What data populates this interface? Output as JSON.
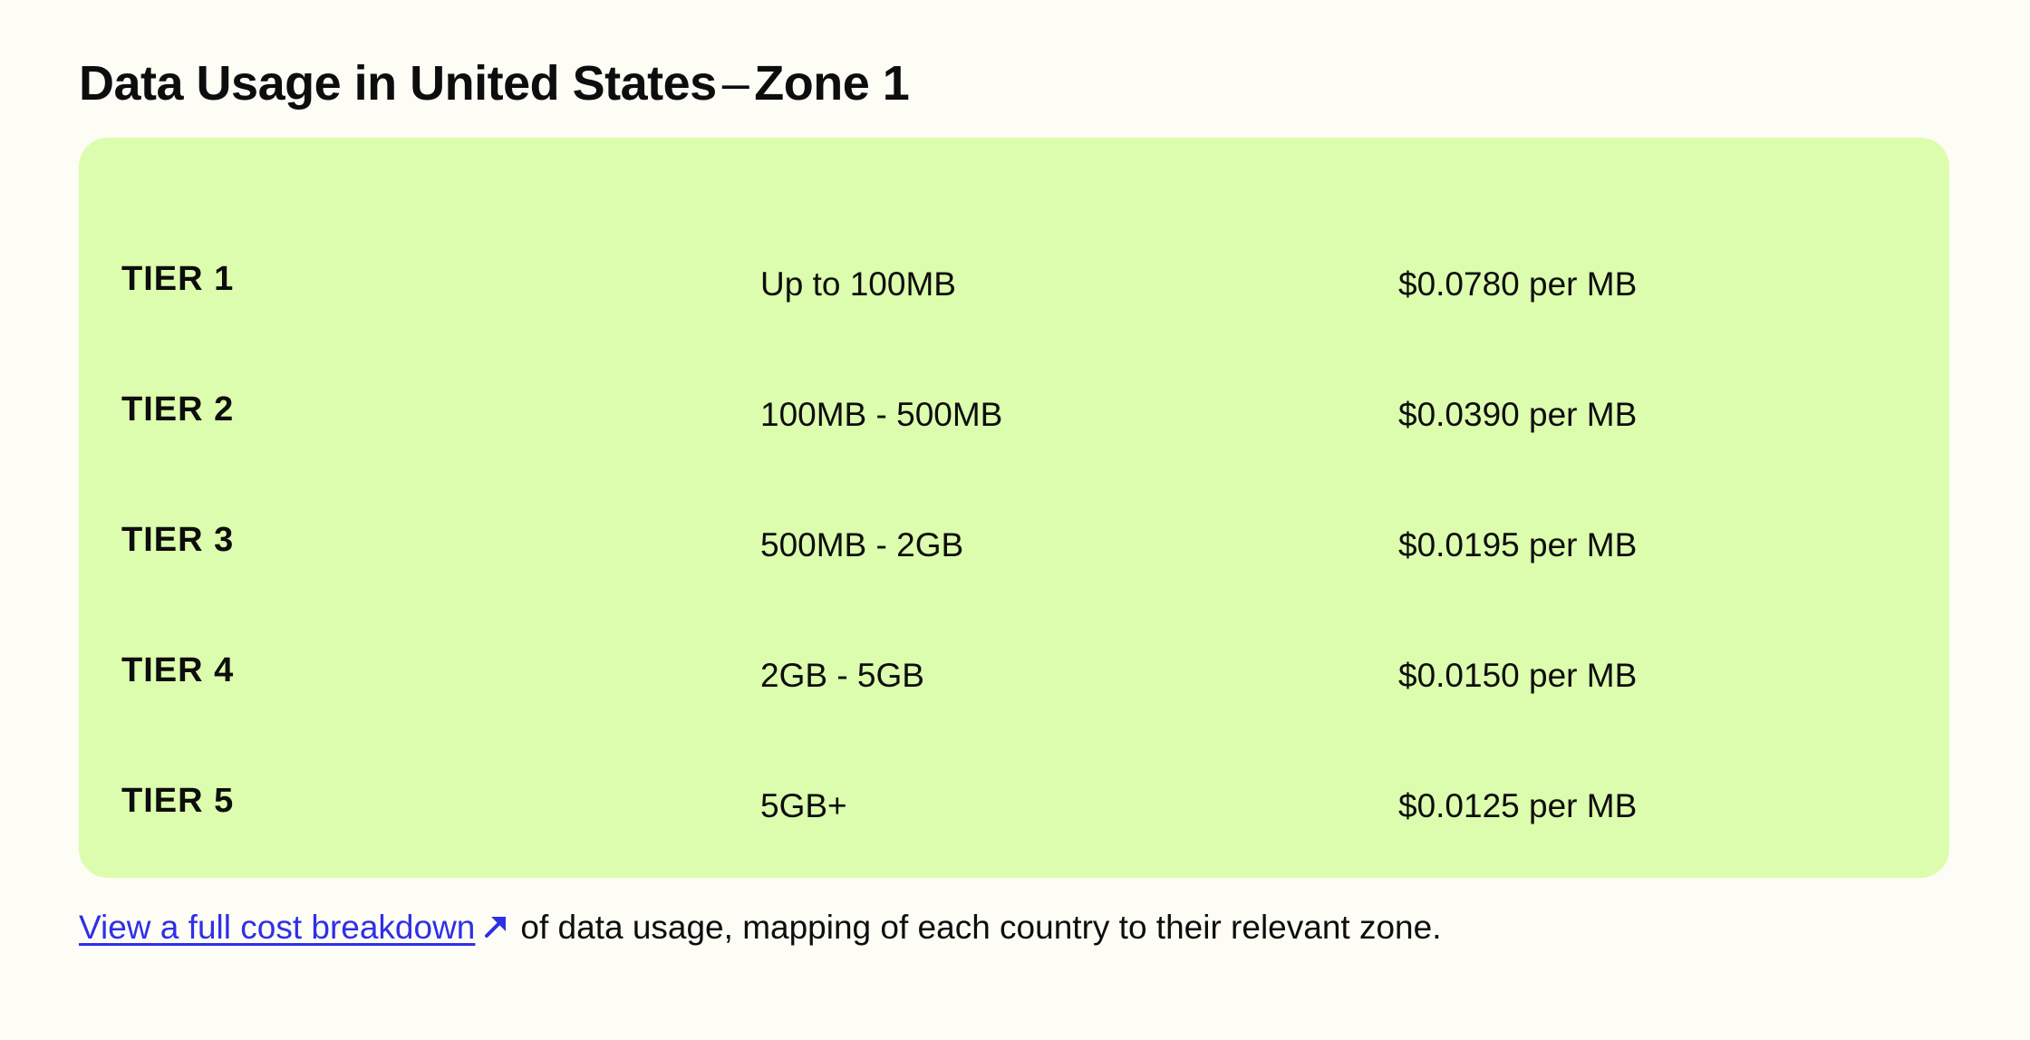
{
  "header": {
    "title_main": "Data Usage in United States",
    "title_dash": "–",
    "title_zone": "Zone 1"
  },
  "tiers": [
    {
      "tier": "TIER 1",
      "range": "Up to 100MB",
      "price": "$0.0780 per MB"
    },
    {
      "tier": "TIER 2",
      "range": "100MB - 500MB",
      "price": "$0.0390 per MB"
    },
    {
      "tier": "TIER 3",
      "range": "500MB - 2GB",
      "price": "$0.0195 per MB"
    },
    {
      "tier": "TIER 4",
      "range": "2GB - 5GB",
      "price": "$0.0150 per MB"
    },
    {
      "tier": "TIER 5",
      "range": "5GB+",
      "price": "$0.0125 per MB"
    }
  ],
  "footer": {
    "link_text": "View a full cost breakdown",
    "rest_text": "of data usage, mapping of each country to their relevant zone.",
    "link_icon": "arrow-up-right-icon"
  },
  "colors": {
    "background": "#fdfdf6",
    "panel": "#dcfdad",
    "link": "#2f2fe8",
    "text": "#0d0d0d"
  }
}
